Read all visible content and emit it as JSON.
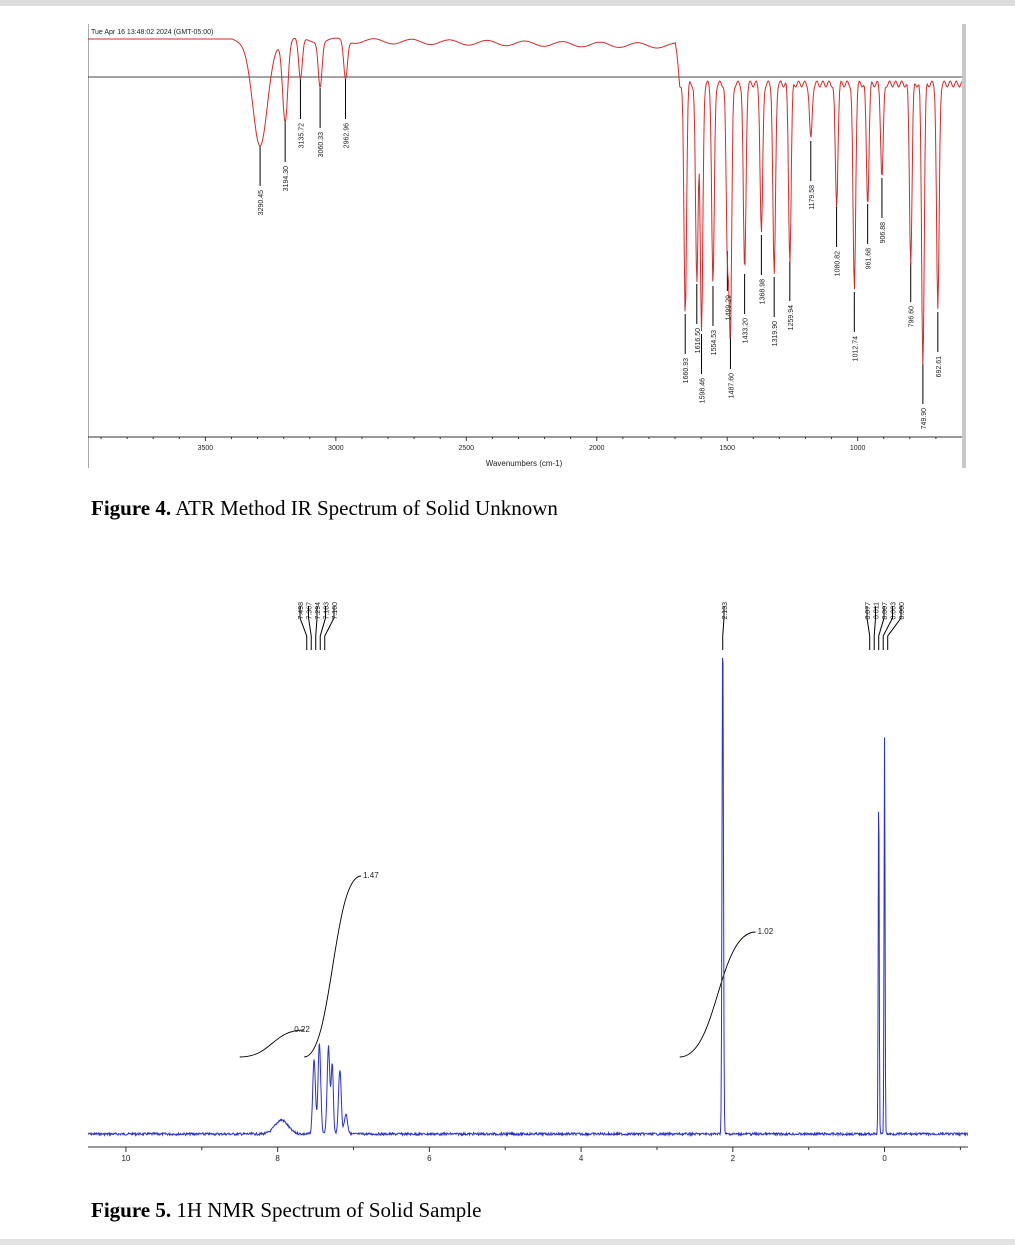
{
  "figure4": {
    "caption_label": "Figure 4.",
    "caption_text": " ATR Method IR Spectrum of Solid Unknown"
  },
  "figure5": {
    "caption_label": "Figure 5.",
    "caption_text": " 1H NMR Spectrum of Solid Sample"
  },
  "chart_data": [
    {
      "type": "line",
      "timestamp": "Tue Apr 16 13:48:02 2024 (GMT-05:00)",
      "xlabel": "Wavenumbers (cm-1)",
      "ylabel": "",
      "xlim": [
        3950,
        600
      ],
      "x_reversed": true,
      "xticks": [
        "3500",
        "3000",
        "2500",
        "2000",
        "1500",
        "1000"
      ],
      "line_color": "#d42a2a",
      "reference_line": true,
      "peaks": [
        {
          "x": 3290.45,
          "label": "3290.45"
        },
        {
          "x": 3194.3,
          "label": "3194.30"
        },
        {
          "x": 3135.72,
          "label": "3135.72"
        },
        {
          "x": 3060.33,
          "label": "3060.33"
        },
        {
          "x": 2962.96,
          "label": "2962.96"
        },
        {
          "x": 1660.93,
          "label": "1660.93"
        },
        {
          "x": 1616.5,
          "label": "1616.50"
        },
        {
          "x": 1598.46,
          "label": "1598.46"
        },
        {
          "x": 1554.53,
          "label": "1554.53"
        },
        {
          "x": 1499.29,
          "label": "1499.29"
        },
        {
          "x": 1487.6,
          "label": "1487.60"
        },
        {
          "x": 1433.2,
          "label": "1433.20"
        },
        {
          "x": 1368.98,
          "label": "1368.98"
        },
        {
          "x": 1319.9,
          "label": "1319.90"
        },
        {
          "x": 1259.94,
          "label": "1259.94"
        },
        {
          "x": 1179.58,
          "label": "1179.58"
        },
        {
          "x": 1080.82,
          "label": "1080.82"
        },
        {
          "x": 1012.74,
          "label": "1012.74"
        },
        {
          "x": 961.68,
          "label": "961.68"
        },
        {
          "x": 906.88,
          "label": "906.88"
        },
        {
          "x": 796.6,
          "label": "796.60"
        },
        {
          "x": 749.9,
          "label": "749.90"
        },
        {
          "x": 692.61,
          "label": "692.61"
        }
      ]
    },
    {
      "type": "line",
      "xlabel": "",
      "ylabel": "",
      "xlim": [
        10.5,
        -1.1
      ],
      "x_reversed": true,
      "xticks": [
        "10",
        "8",
        "6",
        "4",
        "2",
        "0"
      ],
      "line_color": "#2b32c8",
      "peak_labels": [
        {
          "x": 7.498,
          "label": "7.498"
        },
        {
          "x": 7.367,
          "label": "7.367"
        },
        {
          "x": 7.294,
          "label": "7.294"
        },
        {
          "x": 7.183,
          "label": "7.183"
        },
        {
          "x": 7.16,
          "label": "7.160"
        },
        {
          "x": 2.133,
          "label": "2.133"
        },
        {
          "x": 0.077,
          "label": "0.077"
        },
        {
          "x": 0.011,
          "label": "0.011"
        },
        {
          "x": 0.007,
          "label": "0.007"
        },
        {
          "x": 0.003,
          "label": "0.003"
        },
        {
          "x": 0.0,
          "label": "0.000"
        }
      ],
      "integrals": [
        {
          "from": 8.5,
          "to": 7.65,
          "value": "0.22"
        },
        {
          "from": 7.65,
          "to": 6.9,
          "value": "1.47"
        },
        {
          "from": 2.7,
          "to": 1.7,
          "value": "1.02"
        }
      ]
    }
  ]
}
